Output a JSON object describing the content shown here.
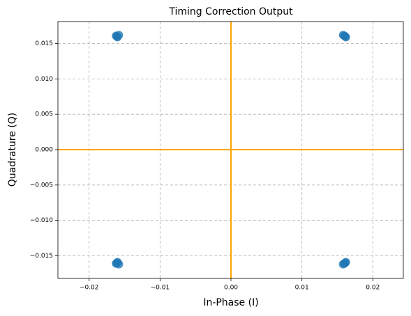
{
  "chart_data": {
    "type": "scatter",
    "title": "Timing Correction Output",
    "x_label": "In-Phase (I)",
    "y_label": "Quadrature (Q)",
    "series": [
      {
        "color": "#1f77b4",
        "x": [
          -0.0162,
          -0.016,
          -0.0158,
          -0.0161,
          0.016,
          0.0162,
          0.0158,
          0.0161,
          -0.0162,
          -0.016,
          -0.0158,
          -0.0161,
          0.016,
          0.0162,
          0.0158,
          0.0161
        ],
        "y": [
          0.0161,
          0.0159,
          0.0162,
          0.016,
          0.0161,
          0.0159,
          0.0162,
          0.016,
          -0.0161,
          -0.0159,
          -0.0162,
          -0.016,
          -0.0161,
          -0.0159,
          -0.0162,
          -0.016
        ]
      }
    ],
    "xlim": [
      -0.0244,
      0.0243
    ],
    "ylim": [
      -0.0182,
      0.0181
    ],
    "xticks": [
      {
        "value": -0.02,
        "label": "−0.02"
      },
      {
        "value": -0.01,
        "label": "−0.01"
      },
      {
        "value": 0,
        "label": "0.00"
      },
      {
        "value": 0.01,
        "label": "0.01"
      },
      {
        "value": 0.02,
        "label": "0.02"
      }
    ],
    "yticks": [
      {
        "value": -0.015,
        "label": "−0.015"
      },
      {
        "value": -0.01,
        "label": "−0.010"
      },
      {
        "value": -0.005,
        "label": "−0.005"
      },
      {
        "value": 0,
        "label": "0.000"
      },
      {
        "value": 0.005,
        "label": "0.005"
      },
      {
        "value": 0.01,
        "label": "0.010"
      },
      {
        "value": 0.015,
        "label": "0.015"
      }
    ],
    "grid": true,
    "hlines": [
      0
    ],
    "vlines": [
      0
    ],
    "line_color": "orange"
  }
}
